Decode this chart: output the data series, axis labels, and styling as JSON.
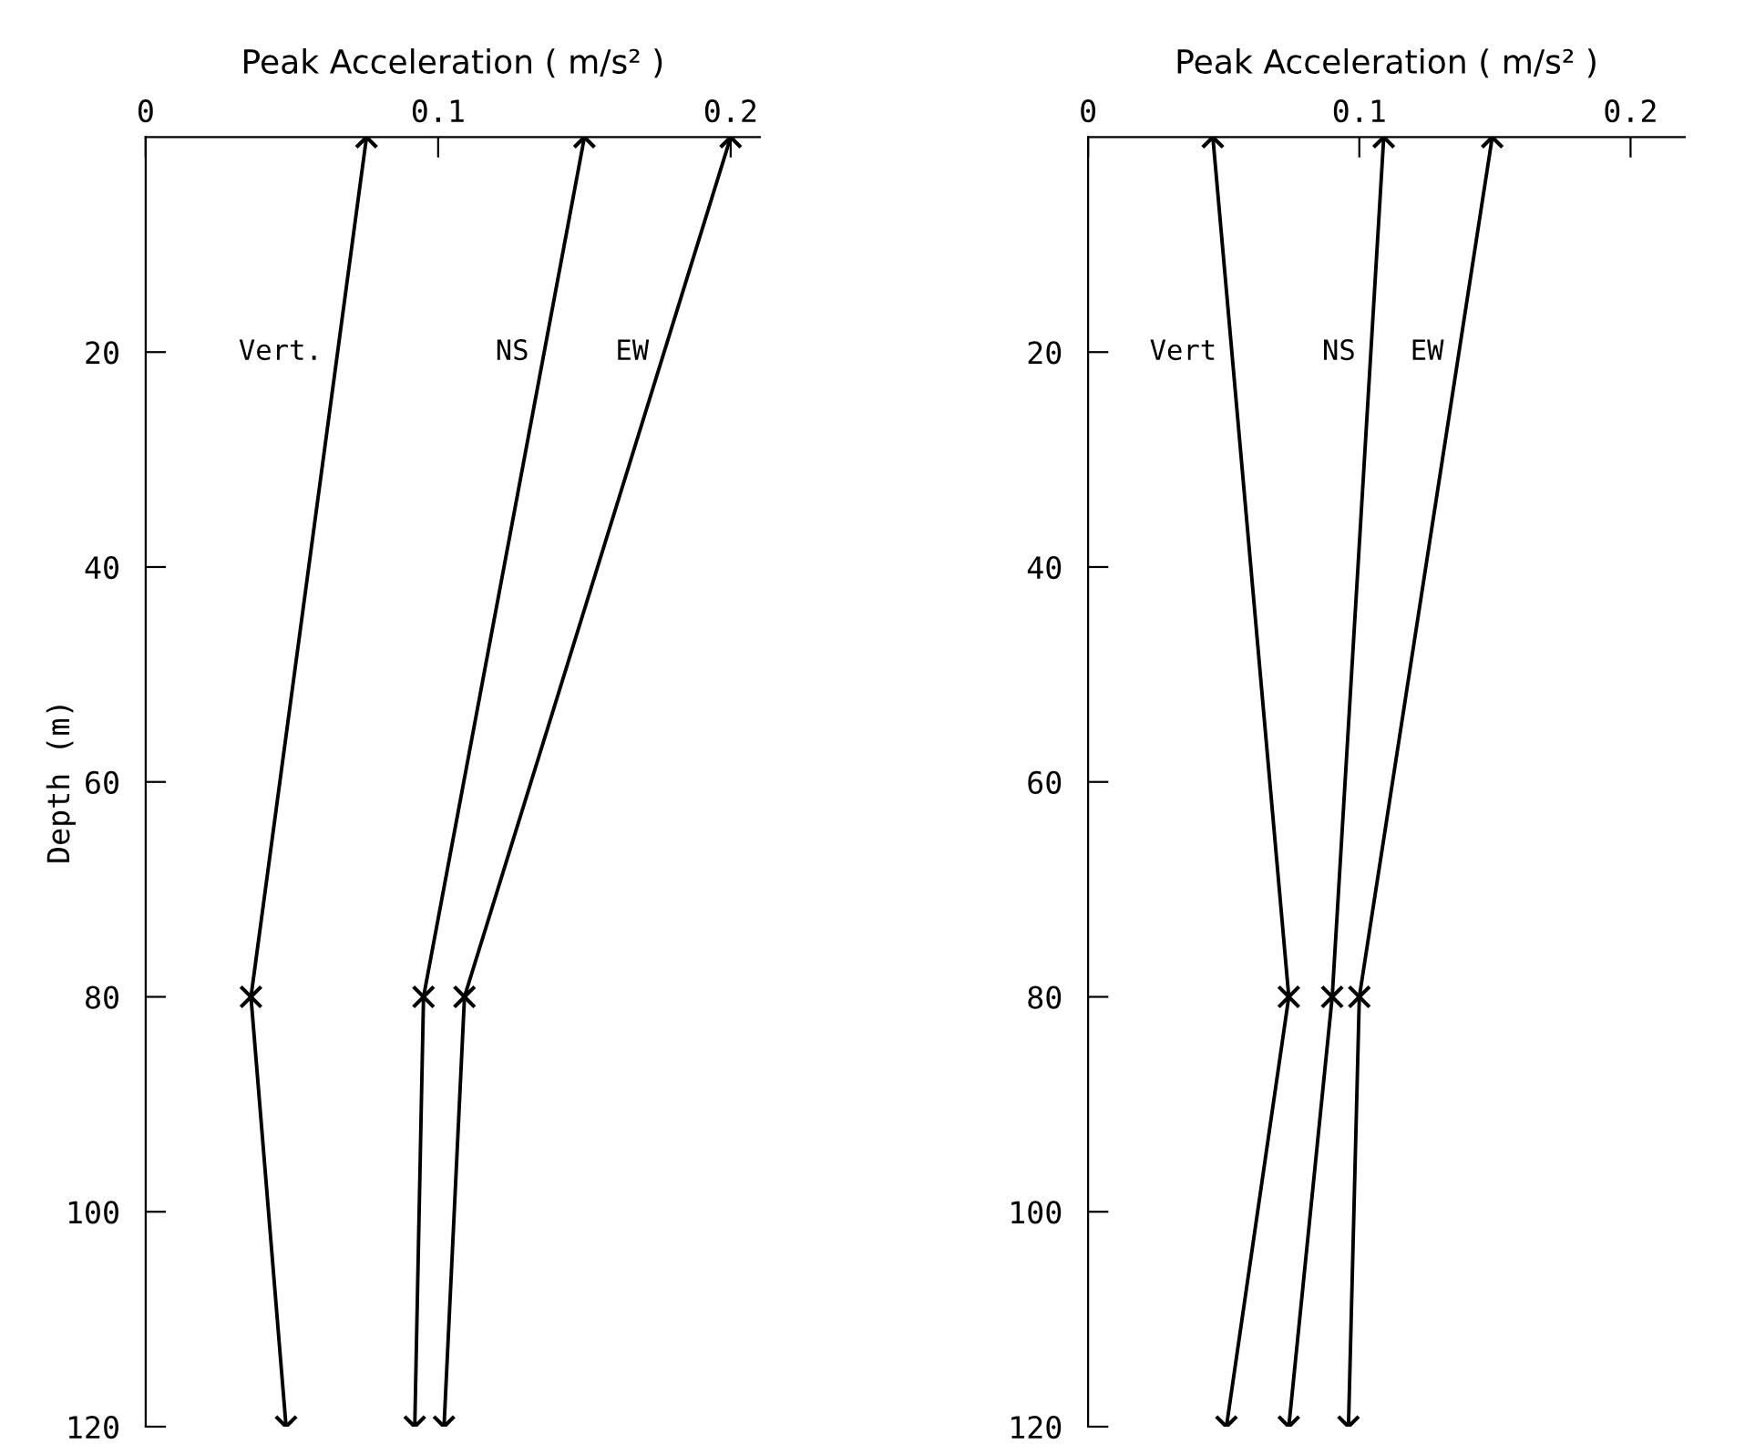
{
  "chart_data": [
    {
      "type": "line",
      "xlabel": "Peak Acceleration ( m/s² )",
      "ylabel": "Depth (m)",
      "xlim": [
        0,
        0.21
      ],
      "xticks": [
        0,
        0.1,
        0.2
      ],
      "ylim": [
        120,
        0
      ],
      "yticks": [
        20,
        40,
        60,
        80,
        100,
        120
      ],
      "marker": "cross",
      "line_style": "solid",
      "legend": false,
      "grid": false,
      "series": [
        {
          "name": "Vert.",
          "color": "#000000",
          "x": [
            0.0755,
            0.036,
            0.048
          ],
          "values": [
            0,
            80,
            120
          ]
        },
        {
          "name": "NS",
          "color": "#000000",
          "x": [
            0.15,
            0.095,
            0.092
          ],
          "values": [
            0,
            80,
            120
          ]
        },
        {
          "name": "EW",
          "color": "#000000",
          "x": [
            0.2,
            0.109,
            0.102
          ],
          "values": [
            0,
            80,
            120
          ]
        }
      ]
    },
    {
      "type": "line",
      "xlabel": "Peak Acceleration ( m/s² )",
      "xlim": [
        0,
        0.22
      ],
      "xticks": [
        0,
        0.1,
        0.2
      ],
      "ylim": [
        120,
        0
      ],
      "yticks": [
        20,
        40,
        60,
        80,
        100,
        120
      ],
      "marker": "cross",
      "line_style": "solid",
      "legend": false,
      "grid": false,
      "series": [
        {
          "name": "Vert",
          "color": "#000000",
          "x": [
            0.046,
            0.074,
            0.051
          ],
          "values": [
            0,
            80,
            120
          ]
        },
        {
          "name": "NS",
          "color": "#000000",
          "x": [
            0.109,
            0.09,
            0.074
          ],
          "values": [
            0,
            80,
            120
          ]
        },
        {
          "name": "EW",
          "color": "#000000",
          "x": [
            0.149,
            0.1,
            0.096
          ],
          "values": [
            0,
            80,
            120
          ]
        }
      ]
    }
  ]
}
